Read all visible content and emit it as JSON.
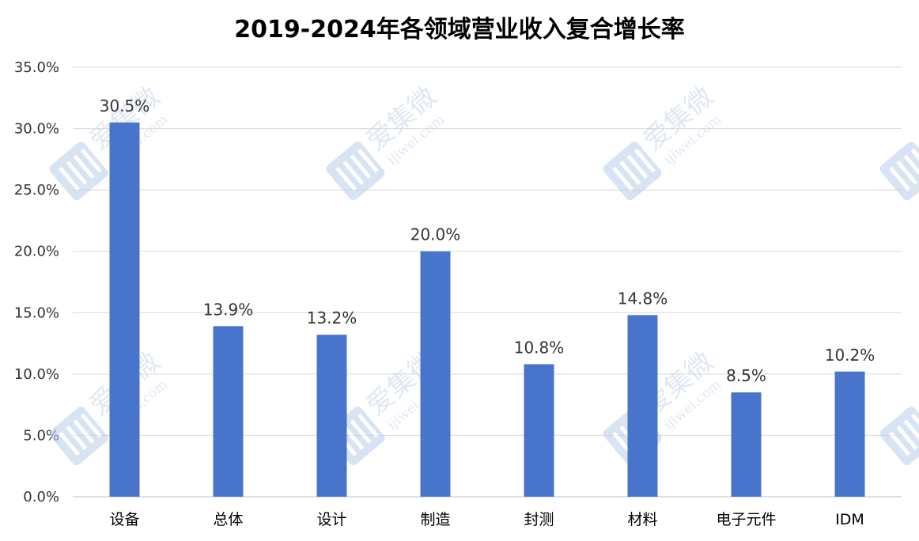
{
  "chart_data": {
    "type": "bar",
    "title": "2019-2024年各领域营业收入复合增长率",
    "xlabel": "",
    "ylabel": "",
    "categories": [
      "设备",
      "总体",
      "设计",
      "制造",
      "封测",
      "材料",
      "电子元件",
      "IDM"
    ],
    "values": [
      30.5,
      13.9,
      13.2,
      20.0,
      10.8,
      14.8,
      8.5,
      10.2
    ],
    "data_labels": [
      "30.5%",
      "13.9%",
      "13.2%",
      "20.0%",
      "10.8%",
      "14.8%",
      "8.5%",
      "10.2%"
    ],
    "ylim": [
      0,
      35
    ],
    "yticks": [
      0,
      5,
      10,
      15,
      20,
      25,
      30,
      35
    ],
    "ytick_labels": [
      "0.0%",
      "5.0%",
      "10.0%",
      "15.0%",
      "20.0%",
      "25.0%",
      "30.0%",
      "35.0%"
    ],
    "grid": true,
    "legend": "none",
    "bar_color": "#4874cb",
    "grid_color": "#d9d9d9"
  },
  "watermark": {
    "brand": "爱集微",
    "domain": "ijiwei.com",
    "logo_icon": "ijiwei-logo-icon"
  }
}
